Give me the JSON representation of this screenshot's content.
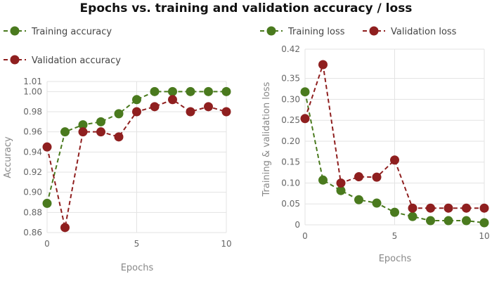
{
  "title": "Epochs vs. training and validation accuracy / loss",
  "colors": {
    "training": "#4a7a1e",
    "validation": "#8f1f1f"
  },
  "chart_data": [
    {
      "type": "line",
      "title": "",
      "xlabel": "Epochs",
      "ylabel": "Accuracy",
      "x": [
        0,
        1,
        2,
        3,
        4,
        5,
        6,
        7,
        8,
        9,
        10
      ],
      "xticks": [
        "0",
        "5",
        "10"
      ],
      "yticks": [
        "0.86",
        "0.88",
        "0.90",
        "0.92",
        "0.94",
        "0.96",
        "0.98",
        "1.00",
        "1.01"
      ],
      "ylim": [
        0.86,
        1.01
      ],
      "xlim": [
        0,
        10
      ],
      "grid": true,
      "legend": "top-left",
      "series": [
        {
          "name": "Training accuracy",
          "style": "dashed",
          "values": [
            0.889,
            0.96,
            0.967,
            0.97,
            0.978,
            0.992,
            1.0,
            1.0,
            1.0,
            1.0,
            1.0
          ]
        },
        {
          "name": "Validation accuracy",
          "style": "dashed",
          "values": [
            0.945,
            0.865,
            0.96,
            0.96,
            0.955,
            0.98,
            0.985,
            0.992,
            0.98,
            0.985,
            0.98
          ]
        }
      ]
    },
    {
      "type": "line",
      "title": "",
      "xlabel": "Epochs",
      "ylabel": "Training & validation loss",
      "x": [
        0,
        1,
        2,
        3,
        4,
        5,
        6,
        7,
        8,
        9,
        10
      ],
      "xticks": [
        "0",
        "5",
        "10"
      ],
      "yticks": [
        "0",
        "0.05",
        "0.10",
        "0.15",
        "0.20",
        "0.25",
        "0.30",
        "0.35",
        "0.42"
      ],
      "ylim": [
        0,
        0.42
      ],
      "xlim": [
        0,
        10
      ],
      "grid": true,
      "legend": "top",
      "series": [
        {
          "name": "Training loss",
          "style": "dashed",
          "values": [
            0.318,
            0.107,
            0.082,
            0.06,
            0.052,
            0.03,
            0.02,
            0.01,
            0.01,
            0.01,
            0.005
          ]
        },
        {
          "name": "Validation loss",
          "style": "dashed",
          "values": [
            0.254,
            0.383,
            0.1,
            0.115,
            0.114,
            0.155,
            0.04,
            0.04,
            0.04,
            0.04,
            0.04
          ]
        }
      ]
    }
  ]
}
